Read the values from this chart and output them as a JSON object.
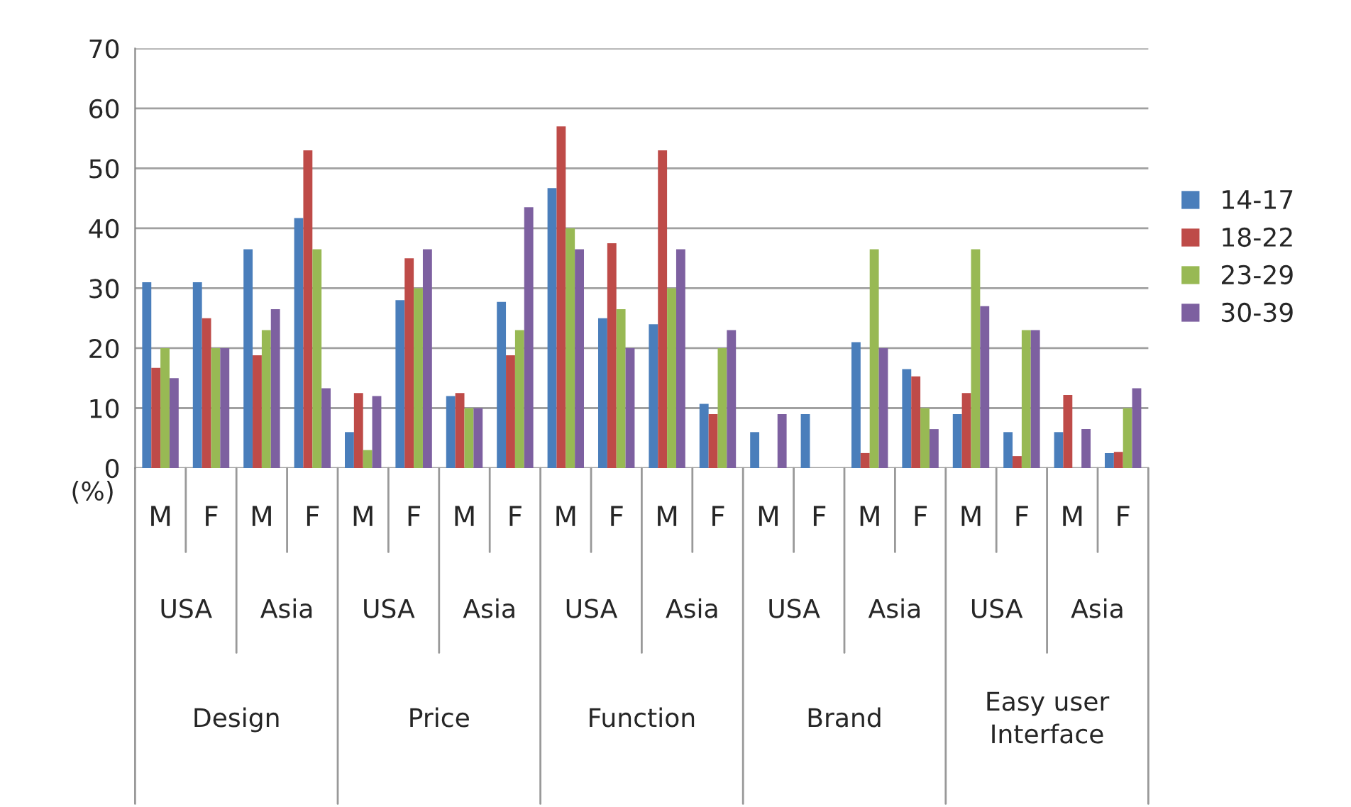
{
  "chart_data": {
    "type": "bar",
    "ylabel": "(%)",
    "categories": [
      "M",
      "F",
      "M",
      "F",
      "M",
      "F",
      "M",
      "F",
      "M",
      "F",
      "M",
      "F",
      "M",
      "F",
      "M",
      "F",
      "M",
      "F",
      "M",
      "F"
    ],
    "series": [
      {
        "name": "14-17",
        "color": "#4a7ebb",
        "values": [
          31,
          31,
          36.5,
          41.7,
          6,
          28,
          12,
          27.7,
          46.7,
          25,
          24,
          10.7,
          6,
          9,
          21,
          16.5,
          9,
          6,
          6,
          2.5
        ]
      },
      {
        "name": "18-22",
        "color": "#be4b48",
        "values": [
          16.7,
          25,
          18.8,
          53,
          12.5,
          35,
          12.5,
          18.8,
          57,
          37.5,
          53,
          9,
          null,
          null,
          2.5,
          15.3,
          12.5,
          2,
          12.2,
          2.7
        ]
      },
      {
        "name": "23-29",
        "color": "#98b954",
        "values": [
          20,
          20,
          23,
          36.5,
          3,
          30,
          10,
          23,
          40,
          26.5,
          30,
          20,
          null,
          null,
          36.5,
          10,
          36.5,
          23,
          null,
          10
        ]
      },
      {
        "name": "30-39",
        "color": "#7d60a0",
        "values": [
          15,
          20,
          26.5,
          13.3,
          12,
          36.5,
          10,
          43.5,
          36.5,
          20,
          36.5,
          23,
          9,
          null,
          20,
          6.5,
          27,
          23,
          6.5,
          13.3
        ]
      }
    ],
    "annotations": [
      "USA",
      "Asia",
      "USA",
      "Asia",
      "USA",
      "Asia",
      "USA",
      "Asia",
      "USA",
      "Asia",
      "Design",
      "Price",
      "Function",
      "Brand",
      "Easy user\nInterface"
    ],
    "ylim": [
      0,
      70
    ],
    "yticks": [
      0,
      10,
      20,
      30,
      40,
      50,
      60,
      70
    ],
    "grid": "y",
    "legend": "right"
  }
}
